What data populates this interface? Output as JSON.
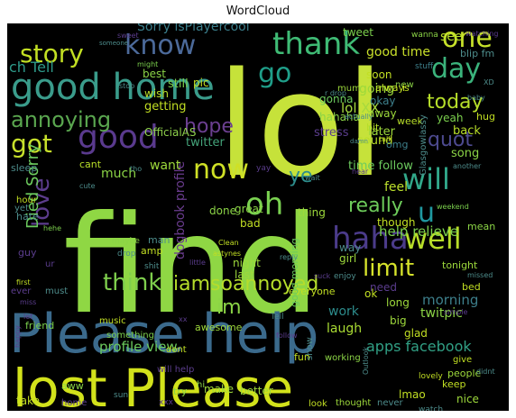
{
  "chart_data": {
    "type": "wordcloud",
    "title": "WordCloud",
    "background": "#000000",
    "words": [
      {
        "text": "lol",
        "weight": 1.0,
        "color": "#c6e23a"
      },
      {
        "text": "find",
        "weight": 0.95,
        "color": "#8fd744"
      },
      {
        "text": "Please help",
        "weight": 0.9,
        "color": "#3b6a8c"
      },
      {
        "text": "lost Please",
        "weight": 0.88,
        "color": "#d2e21b"
      },
      {
        "text": "good home",
        "weight": 0.6,
        "color": "#3a9c8b"
      },
      {
        "text": "good",
        "weight": 0.55,
        "color": "#5a3a8e"
      },
      {
        "text": "thank",
        "weight": 0.5,
        "color": "#3fbb75"
      },
      {
        "text": "haha",
        "weight": 0.48,
        "color": "#4b3b8a"
      },
      {
        "text": "now",
        "weight": 0.45,
        "color": "#cfe026"
      },
      {
        "text": "will",
        "weight": 0.44,
        "color": "#31a88a"
      },
      {
        "text": "oh",
        "weight": 0.42,
        "color": "#7ad151"
      },
      {
        "text": "well",
        "weight": 0.42,
        "color": "#b8de29"
      },
      {
        "text": "know",
        "weight": 0.4,
        "color": "#4c6a9a"
      },
      {
        "text": "day",
        "weight": 0.4,
        "color": "#3bb37c"
      },
      {
        "text": "one",
        "weight": 0.4,
        "color": "#c7e22a"
      },
      {
        "text": "story",
        "weight": 0.38,
        "color": "#c2df23"
      },
      {
        "text": "love",
        "weight": 0.38,
        "color": "#5c3c8c"
      },
      {
        "text": "go",
        "weight": 0.36,
        "color": "#1f9e89"
      },
      {
        "text": "got",
        "weight": 0.36,
        "color": "#c7e02b"
      },
      {
        "text": "u",
        "weight": 0.36,
        "color": "#1f98a0"
      },
      {
        "text": "annoying",
        "weight": 0.34,
        "color": "#5aa64f"
      },
      {
        "text": "think",
        "weight": 0.34,
        "color": "#7fcf4d"
      },
      {
        "text": "iamsoannoyed",
        "weight": 0.33,
        "color": "#b5dd2b"
      },
      {
        "text": "limit",
        "weight": 0.32,
        "color": "#d6e32b"
      },
      {
        "text": "hope",
        "weight": 0.3,
        "color": "#6b3f90"
      },
      {
        "text": "today",
        "weight": 0.3,
        "color": "#b6de2a"
      },
      {
        "text": "quot",
        "weight": 0.3,
        "color": "#4d4a8f"
      },
      {
        "text": "really",
        "weight": 0.28,
        "color": "#6dcb5a"
      },
      {
        "text": "ye",
        "weight": 0.28,
        "color": "#2d8d8c"
      },
      {
        "text": "im",
        "weight": 0.28,
        "color": "#8bd446"
      },
      {
        "text": "ch Tell",
        "weight": 0.26,
        "color": "#2e9a8a"
      },
      {
        "text": "Died Sorry",
        "weight": 0.26,
        "color": "#6ccb5e"
      },
      {
        "text": "lol XX",
        "weight": 0.22,
        "color": "#a6d93e"
      },
      {
        "text": "Sorry isPlayercool",
        "weight": 0.22,
        "color": "#3a7e8b"
      },
      {
        "text": "apps facebook",
        "weight": 0.22,
        "color": "#31a085"
      },
      {
        "text": "help relieve",
        "weight": 0.2,
        "color": "#7bd04d"
      },
      {
        "text": "profile view",
        "weight": 0.2,
        "color": "#6ccb5e"
      },
      {
        "text": "dogbook profile",
        "weight": 0.18,
        "color": "#6a3c8e"
      },
      {
        "text": "OfficialAS",
        "weight": 0.16,
        "color": "#8ed14b"
      },
      {
        "text": "twitter",
        "weight": 0.16,
        "color": "#44a37a"
      },
      {
        "text": "stress",
        "weight": 0.16,
        "color": "#5b3d8d"
      },
      {
        "text": "morning",
        "weight": 0.18,
        "color": "#3d7f8b"
      },
      {
        "text": "twitpic",
        "weight": 0.16,
        "color": "#8bd446"
      },
      {
        "text": "work",
        "weight": 0.16,
        "color": "#2d8c8c"
      },
      {
        "text": "laugh",
        "weight": 0.16,
        "color": "#a9db33"
      },
      {
        "text": "good time",
        "weight": 0.16,
        "color": "#c9e02a"
      },
      {
        "text": "time follow",
        "weight": 0.16,
        "color": "#6ccb5e"
      },
      {
        "text": "going",
        "weight": 0.15,
        "color": "#9dd93b"
      },
      {
        "text": "getting",
        "weight": 0.14,
        "color": "#c2df23"
      },
      {
        "text": "much",
        "weight": 0.15,
        "color": "#8bd446"
      },
      {
        "text": "want",
        "weight": 0.15,
        "color": "#9dd93b"
      },
      {
        "text": "sound",
        "weight": 0.14,
        "color": "#b8de29"
      },
      {
        "text": "later",
        "weight": 0.14,
        "color": "#9dd93b"
      },
      {
        "text": "feel",
        "weight": 0.14,
        "color": "#bde12c"
      },
      {
        "text": "back",
        "weight": 0.14,
        "color": "#b8de29"
      },
      {
        "text": "song",
        "weight": 0.14,
        "color": "#8bd446"
      },
      {
        "text": "yeah",
        "weight": 0.13,
        "color": "#7bd04d"
      },
      {
        "text": "tweet",
        "weight": 0.13,
        "color": "#7bd04d"
      },
      {
        "text": "see",
        "weight": 0.13,
        "color": "#b8de29"
      },
      {
        "text": "still",
        "weight": 0.13,
        "color": "#7bd04d"
      },
      {
        "text": "best",
        "weight": 0.12,
        "color": "#8bd446"
      },
      {
        "text": "pic",
        "weight": 0.12,
        "color": "#c2df23"
      },
      {
        "text": "wish",
        "weight": 0.12,
        "color": "#b8de29"
      },
      {
        "text": "hahaha",
        "weight": 0.12,
        "color": "#8bd446"
      },
      {
        "text": "gonna",
        "weight": 0.12,
        "color": "#6ccb5e"
      },
      {
        "text": "okay",
        "weight": 0.12,
        "color": "#3d7f8b"
      },
      {
        "text": "away",
        "weight": 0.12,
        "color": "#9dd93b"
      },
      {
        "text": "soon",
        "weight": 0.12,
        "color": "#c2df23"
      },
      {
        "text": "new",
        "weight": 0.1,
        "color": "#8bd446"
      },
      {
        "text": "omg",
        "weight": 0.1,
        "color": "#3d7f8b"
      },
      {
        "text": "mum",
        "weight": 0.1,
        "color": "#9dd93b"
      },
      {
        "text": "always",
        "weight": 0.11,
        "color": "#c2df23"
      },
      {
        "text": "week",
        "weight": 0.11,
        "color": "#b8de29"
      },
      {
        "text": "bit",
        "weight": 0.11,
        "color": "#b8de29"
      },
      {
        "text": "hug",
        "weight": 0.11,
        "color": "#c2df23"
      },
      {
        "text": "cant",
        "weight": 0.11,
        "color": "#b8de29"
      },
      {
        "text": "sleep",
        "weight": 0.11,
        "color": "#4d8c8b"
      },
      {
        "text": "done",
        "weight": 0.12,
        "color": "#8bd446"
      },
      {
        "text": "bad",
        "weight": 0.12,
        "color": "#c2df23"
      },
      {
        "text": "great",
        "weight": 0.12,
        "color": "#8bd446"
      },
      {
        "text": "thing",
        "weight": 0.12,
        "color": "#9dd93b"
      },
      {
        "text": "night",
        "weight": 0.12,
        "color": "#9dd93b"
      },
      {
        "text": "last",
        "weight": 0.12,
        "color": "#9dd93b"
      },
      {
        "text": "girl",
        "weight": 0.12,
        "color": "#9dd93b"
      },
      {
        "text": "way",
        "weight": 0.12,
        "color": "#4d8c8b"
      },
      {
        "text": "though",
        "weight": 0.12,
        "color": "#c2df23"
      },
      {
        "text": "need",
        "weight": 0.12,
        "color": "#5b3d8d"
      },
      {
        "text": "ok",
        "weight": 0.12,
        "color": "#c2df23"
      },
      {
        "text": "long",
        "weight": 0.12,
        "color": "#9dd93b"
      },
      {
        "text": "big",
        "weight": 0.12,
        "color": "#9dd93b"
      },
      {
        "text": "glad",
        "weight": 0.12,
        "color": "#c2df23"
      },
      {
        "text": "tonight",
        "weight": 0.11,
        "color": "#9dd93b"
      },
      {
        "text": "mean",
        "weight": 0.11,
        "color": "#8bd446"
      },
      {
        "text": "bed",
        "weight": 0.11,
        "color": "#c2df23"
      },
      {
        "text": "hate",
        "weight": 0.11,
        "color": "#4d8c8b"
      },
      {
        "text": "guy",
        "weight": 0.11,
        "color": "#5b3d8d"
      },
      {
        "text": "man",
        "weight": 0.11,
        "color": "#4d8c8b"
      },
      {
        "text": "amp",
        "weight": 0.11,
        "color": "#c2df23"
      },
      {
        "text": "everyone",
        "weight": 0.11,
        "color": "#c2df23"
      },
      {
        "text": "good morning",
        "weight": 0.11,
        "color": "#6ccb5e"
      },
      {
        "text": "friend",
        "weight": 0.11,
        "color": "#7bd04d"
      },
      {
        "text": "something",
        "weight": 0.1,
        "color": "#7bd04d"
      },
      {
        "text": "music",
        "weight": 0.1,
        "color": "#c2df23"
      },
      {
        "text": "dont",
        "weight": 0.1,
        "color": "#c2df23"
      },
      {
        "text": "awesome",
        "weight": 0.11,
        "color": "#9dd93b"
      },
      {
        "text": "fun",
        "weight": 0.11,
        "color": "#c2df23"
      },
      {
        "text": "show",
        "weight": 0.1,
        "color": "#4d8c8b"
      },
      {
        "text": "working",
        "weight": 0.1,
        "color": "#8bd446"
      },
      {
        "text": "people",
        "weight": 0.11,
        "color": "#9dd93b"
      },
      {
        "text": "keep",
        "weight": 0.11,
        "color": "#c2df23"
      },
      {
        "text": "give",
        "weight": 0.1,
        "color": "#c2df23"
      },
      {
        "text": "nice",
        "weight": 0.11,
        "color": "#9dd93b"
      },
      {
        "text": "lmao",
        "weight": 0.11,
        "color": "#c2df23"
      },
      {
        "text": "look",
        "weight": 0.1,
        "color": "#c2df23"
      },
      {
        "text": "thought",
        "weight": 0.1,
        "color": "#9dd93b"
      },
      {
        "text": "never",
        "weight": 0.1,
        "color": "#4d8c8b"
      },
      {
        "text": "better",
        "weight": 0.11,
        "color": "#9dd93b"
      },
      {
        "text": "make",
        "weight": 0.11,
        "color": "#9dd93b"
      },
      {
        "text": "try",
        "weight": 0.1,
        "color": "#8bd446"
      },
      {
        "text": "take",
        "weight": 0.11,
        "color": "#c2df23"
      },
      {
        "text": "home",
        "weight": 0.1,
        "color": "#5b3d8d"
      },
      {
        "text": "hi",
        "weight": 0.1,
        "color": "#8bd446"
      },
      {
        "text": "will help",
        "weight": 0.1,
        "color": "#5b3d8d"
      },
      {
        "text": "Glasgowlassy",
        "weight": 0.08,
        "color": "#4d8c8b"
      },
      {
        "text": "blip fm",
        "weight": 0.1,
        "color": "#4d8c8b"
      },
      {
        "text": "watching",
        "weight": 0.07,
        "color": "#5b3d8d"
      },
      {
        "text": "simple",
        "weight": 0.07,
        "color": "#5b3d8d"
      },
      {
        "text": "wanna",
        "weight": 0.08,
        "color": "#8bd446"
      },
      {
        "text": "stuff",
        "weight": 0.08,
        "color": "#3d7f8b"
      },
      {
        "text": "sweet",
        "weight": 0.07,
        "color": "#5b3d8d"
      },
      {
        "text": "someone",
        "weight": 0.06,
        "color": "#4d8c8b"
      },
      {
        "text": "might",
        "weight": 0.07,
        "color": "#7bd04d"
      },
      {
        "text": "actually",
        "weight": 0.07,
        "color": "#4d8c8b"
      },
      {
        "text": "baby",
        "weight": 0.07,
        "color": "#4d8c8b"
      },
      {
        "text": "stop",
        "weight": 0.07,
        "color": "#4d8c8b"
      },
      {
        "text": "talk",
        "weight": 0.07,
        "color": "#c2df23"
      },
      {
        "text": "damn",
        "weight": 0.06,
        "color": "#4d8c8b"
      },
      {
        "text": "tho",
        "weight": 0.07,
        "color": "#4d8c8b"
      },
      {
        "text": "yay",
        "weight": 0.08,
        "color": "#5b3d8d"
      },
      {
        "text": "wait",
        "weight": 0.07,
        "color": "#4d8c8b"
      },
      {
        "text": "weekend",
        "weight": 0.07,
        "color": "#7bd04d"
      },
      {
        "text": "another",
        "weight": 0.07,
        "color": "#4d8c8b"
      },
      {
        "text": "hour",
        "weight": 0.09,
        "color": "#c2df23"
      },
      {
        "text": "yet",
        "weight": 0.09,
        "color": "#4d8c8b"
      },
      {
        "text": "hehe",
        "weight": 0.07,
        "color": "#7bd04d"
      },
      {
        "text": "maybe",
        "weight": 0.08,
        "color": "#8bd446"
      },
      {
        "text": "shit",
        "weight": 0.08,
        "color": "#4d8c8b"
      },
      {
        "text": "Clean",
        "weight": 0.07,
        "color": "#c2df23"
      },
      {
        "text": "astynes",
        "weight": 0.07,
        "color": "#c2df23"
      },
      {
        "text": "little",
        "weight": 0.07,
        "color": "#5b3d8d"
      },
      {
        "text": "enjoy",
        "weight": 0.08,
        "color": "#4d8c8b"
      },
      {
        "text": "drop",
        "weight": 0.08,
        "color": "#4d8c8b"
      },
      {
        "text": "reply",
        "weight": 0.07,
        "color": "#4d8c8b"
      },
      {
        "text": "ur",
        "weight": 0.08,
        "color": "#5b3d8d"
      },
      {
        "text": "must",
        "weight": 0.08,
        "color": "#4d8c8b"
      },
      {
        "text": "first",
        "weight": 0.07,
        "color": "#c2df23"
      },
      {
        "text": "miss",
        "weight": 0.07,
        "color": "#5b3d8d"
      },
      {
        "text": "let",
        "weight": 0.07,
        "color": "#5b3d8d"
      },
      {
        "text": "happy",
        "weight": 0.07,
        "color": "#5b3d8d"
      },
      {
        "text": "aww",
        "weight": 0.08,
        "color": "#8bd446"
      },
      {
        "text": "sun",
        "weight": 0.07,
        "color": "#4d8c8b"
      },
      {
        "text": "xxx",
        "weight": 0.07,
        "color": "#5b3d8d"
      },
      {
        "text": "xx",
        "weight": 0.06,
        "color": "#5b3d8d"
      },
      {
        "text": "Tell",
        "weight": 0.07,
        "color": "#4d8c8b"
      },
      {
        "text": "follow",
        "weight": 0.06,
        "color": "#5b3d8d"
      },
      {
        "text": "Outlook",
        "weight": 0.06,
        "color": "#4d8c8b"
      },
      {
        "text": "lovely",
        "weight": 0.07,
        "color": "#c2df23"
      },
      {
        "text": "didnt",
        "weight": 0.06,
        "color": "#4d8c8b"
      },
      {
        "text": "watch",
        "weight": 0.07,
        "color": "#4d8c8b"
      },
      {
        "text": "missed",
        "weight": 0.06,
        "color": "#4d8c8b"
      },
      {
        "text": "suck",
        "weight": 0.06,
        "color": "#5b3d8d"
      },
      {
        "text": "hear",
        "weight": 0.06,
        "color": "#5b3d8d"
      },
      {
        "text": "XD",
        "weight": 0.06,
        "color": "#4d8c8b"
      },
      {
        "text": "cute",
        "weight": 0.06,
        "color": "#4d8c8b"
      },
      {
        "text": "r drop",
        "weight": 0.06,
        "color": "#4d8c8b"
      },
      {
        "text": "i",
        "weight": 0.09,
        "color": "#c2df23"
      },
      {
        "text": "ever",
        "weight": 0.07,
        "color": "#5b3d8d"
      }
    ]
  }
}
